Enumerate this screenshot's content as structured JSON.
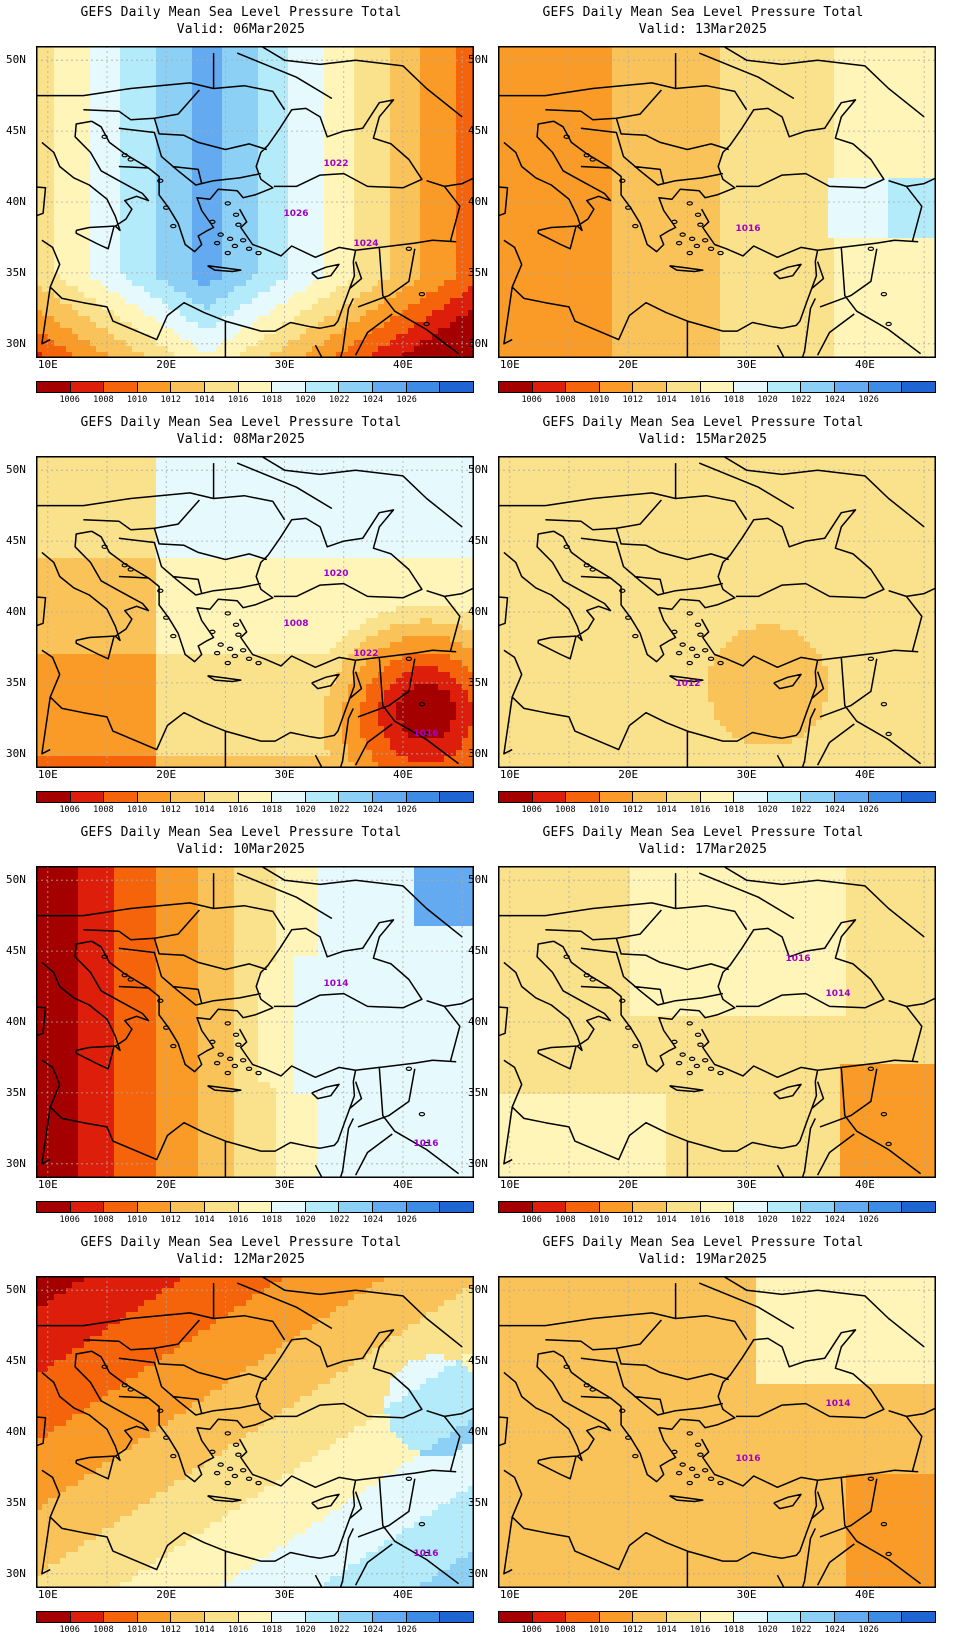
{
  "figure": {
    "panels": [
      {
        "title": "GEFS Daily Mean Sea Level Pressure Total",
        "valid": "Valid: 06Mar2025",
        "base_level": 1022,
        "gradient": "high-center",
        "contour_labels": [
          "1026",
          "1024",
          "1022"
        ]
      },
      {
        "title": "GEFS Daily Mean Sea Level Pressure Total",
        "valid": "Valid: 13Mar2025",
        "base_level": 1014,
        "gradient": "west-low",
        "contour_labels": [
          "1016"
        ]
      },
      {
        "title": "GEFS Daily Mean Sea Level Pressure Total",
        "valid": "Valid: 08Mar2025",
        "base_level": 1016,
        "gradient": "southeast-low",
        "contour_labels": [
          "1022",
          "1020",
          "1016",
          "1008"
        ]
      },
      {
        "title": "GEFS Daily Mean Sea Level Pressure Total",
        "valid": "Valid: 15Mar2025",
        "base_level": 1014,
        "gradient": "flat",
        "contour_labels": [
          "1012"
        ]
      },
      {
        "title": "GEFS Daily Mean Sea Level Pressure Total",
        "valid": "Valid: 10Mar2025",
        "base_level": 1016,
        "gradient": "northwest-low",
        "contour_labels": [
          "1014",
          "1016"
        ]
      },
      {
        "title": "GEFS Daily Mean Sea Level Pressure Total",
        "valid": "Valid: 17Mar2025",
        "base_level": 1014,
        "gradient": "flat-north-high",
        "contour_labels": [
          "1016",
          "1014"
        ]
      },
      {
        "title": "GEFS Daily Mean Sea Level Pressure Total",
        "valid": "Valid: 12Mar2025",
        "base_level": 1014,
        "gradient": "north-low",
        "contour_labels": [
          "1016"
        ]
      },
      {
        "title": "GEFS Daily Mean Sea Level Pressure Total",
        "valid": "Valid: 19Mar2025",
        "base_level": 1014,
        "gradient": "flat-northeast-high",
        "contour_labels": [
          "1014",
          "1016"
        ]
      }
    ],
    "lat_labels": [
      "50N",
      "45N",
      "40N",
      "35N",
      "30N"
    ],
    "lon_labels": [
      "10E",
      "20E",
      "30E",
      "40E"
    ],
    "colorbar": {
      "labels": [
        "1006",
        "1008",
        "1010",
        "1012",
        "1014",
        "1016",
        "1018",
        "1020",
        "1022",
        "1024",
        "1026"
      ],
      "colors": [
        "#a50000",
        "#dc1e0a",
        "#f5640a",
        "#fa9b28",
        "#fac35a",
        "#fae18c",
        "#fff5b9",
        "#e6fafe",
        "#b4ebfa",
        "#8cd0f5",
        "#64aaf0",
        "#3c8ce6",
        "#1e64d2"
      ]
    },
    "colors": {
      "contour": "#a000c8",
      "coast": "#000000",
      "grid": "#aaaaaa"
    }
  }
}
